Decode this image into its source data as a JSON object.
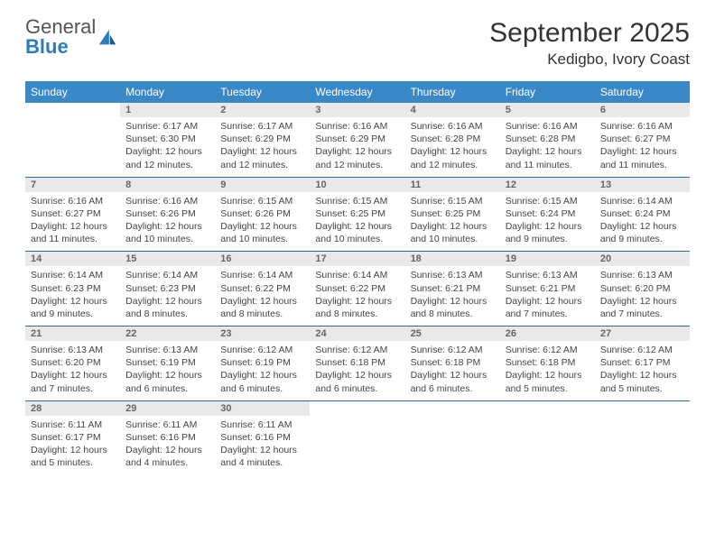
{
  "logo": {
    "text1": "General",
    "text2": "Blue"
  },
  "title": "September 2025",
  "location": "Kedigbo, Ivory Coast",
  "colors": {
    "header_bg": "#3b88c9",
    "header_text": "#ffffff",
    "daynum_bg": "#e9e9e9",
    "daynum_text": "#666666",
    "rule": "#2b6aa8",
    "logo_blue": "#2b7bbf"
  },
  "dow": [
    "Sunday",
    "Monday",
    "Tuesday",
    "Wednesday",
    "Thursday",
    "Friday",
    "Saturday"
  ],
  "weeks": [
    [
      null,
      {
        "n": "1",
        "sr": "6:17 AM",
        "ss": "6:30 PM",
        "dl": "12 hours and 12 minutes."
      },
      {
        "n": "2",
        "sr": "6:17 AM",
        "ss": "6:29 PM",
        "dl": "12 hours and 12 minutes."
      },
      {
        "n": "3",
        "sr": "6:16 AM",
        "ss": "6:29 PM",
        "dl": "12 hours and 12 minutes."
      },
      {
        "n": "4",
        "sr": "6:16 AM",
        "ss": "6:28 PM",
        "dl": "12 hours and 12 minutes."
      },
      {
        "n": "5",
        "sr": "6:16 AM",
        "ss": "6:28 PM",
        "dl": "12 hours and 11 minutes."
      },
      {
        "n": "6",
        "sr": "6:16 AM",
        "ss": "6:27 PM",
        "dl": "12 hours and 11 minutes."
      }
    ],
    [
      {
        "n": "7",
        "sr": "6:16 AM",
        "ss": "6:27 PM",
        "dl": "12 hours and 11 minutes."
      },
      {
        "n": "8",
        "sr": "6:16 AM",
        "ss": "6:26 PM",
        "dl": "12 hours and 10 minutes."
      },
      {
        "n": "9",
        "sr": "6:15 AM",
        "ss": "6:26 PM",
        "dl": "12 hours and 10 minutes."
      },
      {
        "n": "10",
        "sr": "6:15 AM",
        "ss": "6:25 PM",
        "dl": "12 hours and 10 minutes."
      },
      {
        "n": "11",
        "sr": "6:15 AM",
        "ss": "6:25 PM",
        "dl": "12 hours and 10 minutes."
      },
      {
        "n": "12",
        "sr": "6:15 AM",
        "ss": "6:24 PM",
        "dl": "12 hours and 9 minutes."
      },
      {
        "n": "13",
        "sr": "6:14 AM",
        "ss": "6:24 PM",
        "dl": "12 hours and 9 minutes."
      }
    ],
    [
      {
        "n": "14",
        "sr": "6:14 AM",
        "ss": "6:23 PM",
        "dl": "12 hours and 9 minutes."
      },
      {
        "n": "15",
        "sr": "6:14 AM",
        "ss": "6:23 PM",
        "dl": "12 hours and 8 minutes."
      },
      {
        "n": "16",
        "sr": "6:14 AM",
        "ss": "6:22 PM",
        "dl": "12 hours and 8 minutes."
      },
      {
        "n": "17",
        "sr": "6:14 AM",
        "ss": "6:22 PM",
        "dl": "12 hours and 8 minutes."
      },
      {
        "n": "18",
        "sr": "6:13 AM",
        "ss": "6:21 PM",
        "dl": "12 hours and 8 minutes."
      },
      {
        "n": "19",
        "sr": "6:13 AM",
        "ss": "6:21 PM",
        "dl": "12 hours and 7 minutes."
      },
      {
        "n": "20",
        "sr": "6:13 AM",
        "ss": "6:20 PM",
        "dl": "12 hours and 7 minutes."
      }
    ],
    [
      {
        "n": "21",
        "sr": "6:13 AM",
        "ss": "6:20 PM",
        "dl": "12 hours and 7 minutes."
      },
      {
        "n": "22",
        "sr": "6:13 AM",
        "ss": "6:19 PM",
        "dl": "12 hours and 6 minutes."
      },
      {
        "n": "23",
        "sr": "6:12 AM",
        "ss": "6:19 PM",
        "dl": "12 hours and 6 minutes."
      },
      {
        "n": "24",
        "sr": "6:12 AM",
        "ss": "6:18 PM",
        "dl": "12 hours and 6 minutes."
      },
      {
        "n": "25",
        "sr": "6:12 AM",
        "ss": "6:18 PM",
        "dl": "12 hours and 6 minutes."
      },
      {
        "n": "26",
        "sr": "6:12 AM",
        "ss": "6:18 PM",
        "dl": "12 hours and 5 minutes."
      },
      {
        "n": "27",
        "sr": "6:12 AM",
        "ss": "6:17 PM",
        "dl": "12 hours and 5 minutes."
      }
    ],
    [
      {
        "n": "28",
        "sr": "6:11 AM",
        "ss": "6:17 PM",
        "dl": "12 hours and 5 minutes."
      },
      {
        "n": "29",
        "sr": "6:11 AM",
        "ss": "6:16 PM",
        "dl": "12 hours and 4 minutes."
      },
      {
        "n": "30",
        "sr": "6:11 AM",
        "ss": "6:16 PM",
        "dl": "12 hours and 4 minutes."
      },
      null,
      null,
      null,
      null
    ]
  ],
  "labels": {
    "sunrise": "Sunrise:",
    "sunset": "Sunset:",
    "daylight": "Daylight:"
  }
}
